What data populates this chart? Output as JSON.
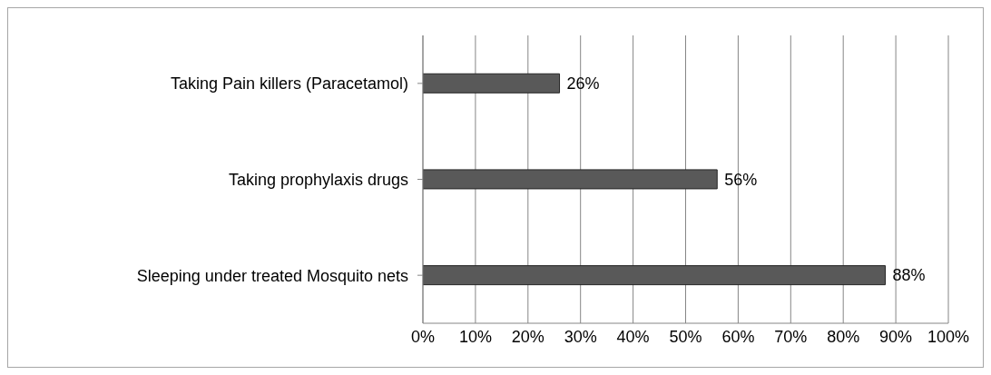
{
  "chart_data": {
    "type": "bar",
    "orientation": "horizontal",
    "categories": [
      "Taking Pain killers (Paracetamol)",
      "Taking prophylaxis drugs",
      "Sleeping under treated Mosquito nets"
    ],
    "values": [
      26,
      56,
      88
    ],
    "color": "#595959",
    "value_labels": [
      "26%",
      "56%",
      "88%"
    ],
    "xlim": [
      0,
      100
    ],
    "xticks": [
      {
        "value": 0,
        "label": "0%"
      },
      {
        "value": 10,
        "label": "10%"
      },
      {
        "value": 20,
        "label": "20%"
      },
      {
        "value": 30,
        "label": "30%"
      },
      {
        "value": 40,
        "label": "40%"
      },
      {
        "value": 50,
        "label": "50%"
      },
      {
        "value": 60,
        "label": "60%"
      },
      {
        "value": 70,
        "label": "70%"
      },
      {
        "value": 80,
        "label": "80%"
      },
      {
        "value": 90,
        "label": "90%"
      },
      {
        "value": 100,
        "label": "100%"
      }
    ],
    "grid": "x",
    "legend": false
  }
}
